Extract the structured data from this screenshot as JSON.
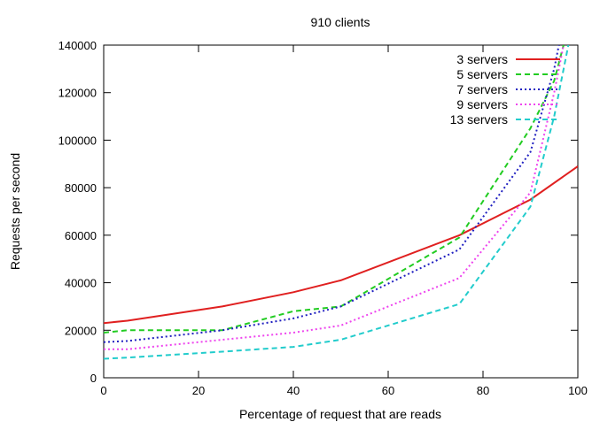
{
  "chart_data": {
    "type": "line",
    "title": "910 clients",
    "xlabel": "Percentage of request that are reads",
    "ylabel": "Requests per second",
    "xlim": [
      0,
      100
    ],
    "ylim": [
      0,
      140000
    ],
    "xticks": [
      0,
      20,
      40,
      60,
      80,
      100
    ],
    "yticks": [
      0,
      20000,
      40000,
      60000,
      80000,
      100000,
      120000,
      140000
    ],
    "legend_position": "top-right",
    "grid": false,
    "series": [
      {
        "name": "3 servers",
        "color": "#e02020",
        "dash": "solid",
        "points": [
          [
            0,
            23000
          ],
          [
            5,
            24000
          ],
          [
            25,
            30000
          ],
          [
            40,
            36000
          ],
          [
            50,
            41000
          ],
          [
            75,
            60000
          ],
          [
            90,
            75000
          ],
          [
            100,
            89000
          ]
        ]
      },
      {
        "name": "5 servers",
        "color": "#22cc22",
        "dash": "dashed",
        "points": [
          [
            0,
            19000
          ],
          [
            5,
            20000
          ],
          [
            25,
            20000
          ],
          [
            40,
            28000
          ],
          [
            50,
            30000
          ],
          [
            75,
            59000
          ],
          [
            90,
            105000
          ],
          [
            95,
            125000
          ],
          [
            97,
            140000
          ]
        ]
      },
      {
        "name": "7 servers",
        "color": "#2020c0",
        "dash": "dotted",
        "points": [
          [
            0,
            15000
          ],
          [
            5,
            15500
          ],
          [
            25,
            20000
          ],
          [
            40,
            25000
          ],
          [
            50,
            30000
          ],
          [
            75,
            54000
          ],
          [
            90,
            95000
          ],
          [
            95,
            130000
          ],
          [
            96,
            140000
          ]
        ]
      },
      {
        "name": "9 servers",
        "color": "#ee44ee",
        "dash": "dotted",
        "points": [
          [
            0,
            12000
          ],
          [
            5,
            12000
          ],
          [
            25,
            16000
          ],
          [
            40,
            19000
          ],
          [
            50,
            22000
          ],
          [
            75,
            42000
          ],
          [
            90,
            78000
          ],
          [
            95,
            120000
          ],
          [
            97,
            140000
          ]
        ]
      },
      {
        "name": "13 servers",
        "color": "#22cccc",
        "dash": "dashed",
        "points": [
          [
            0,
            8000
          ],
          [
            5,
            8500
          ],
          [
            25,
            11000
          ],
          [
            40,
            13000
          ],
          [
            50,
            16000
          ],
          [
            75,
            31000
          ],
          [
            90,
            72000
          ],
          [
            95,
            110000
          ],
          [
            98,
            140000
          ]
        ]
      }
    ]
  }
}
